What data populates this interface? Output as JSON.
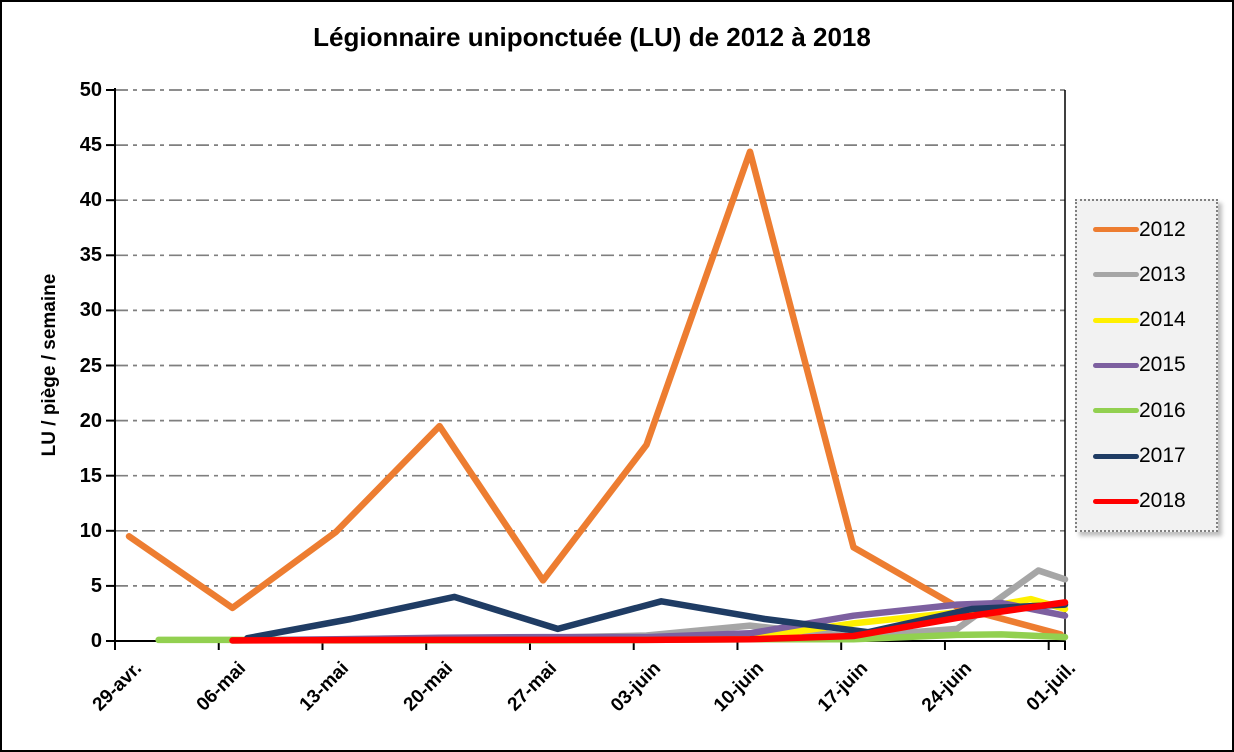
{
  "title": "Légionnaire uniponctuée (LU) de 2012 à 2018",
  "chart_data": {
    "type": "line",
    "title": "Légionnaire uniponctuée (LU) de 2012 à 2018",
    "xlabel": "",
    "ylabel": "LU / piège / semaine",
    "ylim": [
      0,
      50
    ],
    "y_ticks": [
      0,
      5,
      10,
      15,
      20,
      25,
      30,
      35,
      40,
      45,
      50
    ],
    "grid": "horizontal dash-dot gray lines every 5 units",
    "legend_position": "right",
    "categories": [
      "29-avr.",
      "06-mai",
      "13-mai",
      "20-mai",
      "27-mai",
      "03-juin",
      "10-juin",
      "17-juin",
      "24-juin",
      "01-juil."
    ],
    "category_days": [
      0,
      7,
      14,
      21,
      28,
      35,
      42,
      49,
      56,
      63
    ],
    "x_unit": "days since 29-avr",
    "series": [
      {
        "name": "2012",
        "color": "#ED7D31",
        "points": [
          [
            0,
            9.5
          ],
          [
            7,
            3.0
          ],
          [
            14,
            9.9
          ],
          [
            21,
            19.5
          ],
          [
            28,
            5.5
          ],
          [
            35,
            17.8
          ],
          [
            42,
            44.4
          ],
          [
            49,
            8.5
          ],
          [
            56,
            3.1
          ],
          [
            63,
            0.6
          ]
        ]
      },
      {
        "name": "2013",
        "color": "#A6A6A6",
        "points": [
          [
            7,
            0.05
          ],
          [
            14,
            0.1
          ],
          [
            21,
            0.2
          ],
          [
            28,
            0.3
          ],
          [
            35,
            0.5
          ],
          [
            42,
            1.4
          ],
          [
            49,
            0.4
          ],
          [
            56,
            1.1
          ],
          [
            61.5,
            6.4
          ],
          [
            63.3,
            5.6
          ]
        ]
      },
      {
        "name": "2014",
        "color": "#FFF000",
        "points": [
          [
            7,
            0.05
          ],
          [
            14,
            0.1
          ],
          [
            21,
            0.15
          ],
          [
            28,
            0.15
          ],
          [
            35,
            0.2
          ],
          [
            42,
            0.25
          ],
          [
            49,
            1.6
          ],
          [
            56,
            2.6
          ],
          [
            61,
            3.8
          ],
          [
            63.3,
            2.9
          ]
        ]
      },
      {
        "name": "2015",
        "color": "#7D60A0",
        "points": [
          [
            7,
            0.05
          ],
          [
            14,
            0.15
          ],
          [
            21,
            0.3
          ],
          [
            28,
            0.35
          ],
          [
            35,
            0.35
          ],
          [
            42,
            0.7
          ],
          [
            49,
            2.3
          ],
          [
            56,
            3.3
          ],
          [
            59,
            3.45
          ],
          [
            63.3,
            2.3
          ]
        ]
      },
      {
        "name": "2016",
        "color": "#92D050",
        "points": [
          [
            2,
            0.1
          ],
          [
            7,
            0.1
          ],
          [
            14,
            0.05
          ],
          [
            21,
            0.05
          ],
          [
            28,
            0.05
          ],
          [
            35,
            0.1
          ],
          [
            42,
            0.15
          ],
          [
            49,
            0.15
          ],
          [
            56,
            0.55
          ],
          [
            59,
            0.6
          ],
          [
            63.3,
            0.35
          ]
        ]
      },
      {
        "name": "2017",
        "color": "#1F3C64",
        "points": [
          [
            8,
            0.25
          ],
          [
            15,
            2.0
          ],
          [
            22,
            4.0
          ],
          [
            29,
            1.1
          ],
          [
            36,
            3.6
          ],
          [
            43,
            2.0
          ],
          [
            50,
            0.8
          ],
          [
            57,
            2.9
          ],
          [
            63.3,
            3.3
          ]
        ]
      },
      {
        "name": "2018",
        "color": "#FF0000",
        "points": [
          [
            7,
            0.05
          ],
          [
            14,
            0.08
          ],
          [
            21,
            0.1
          ],
          [
            28,
            0.1
          ],
          [
            35,
            0.1
          ],
          [
            42,
            0.15
          ],
          [
            49,
            0.45
          ],
          [
            56,
            2.1
          ],
          [
            63.3,
            3.5
          ]
        ]
      }
    ]
  },
  "colors": {
    "gridline": "#7F7F7F",
    "axis": "#000000",
    "legend_background": "#F2F2F2",
    "legend_border": "#808080"
  }
}
